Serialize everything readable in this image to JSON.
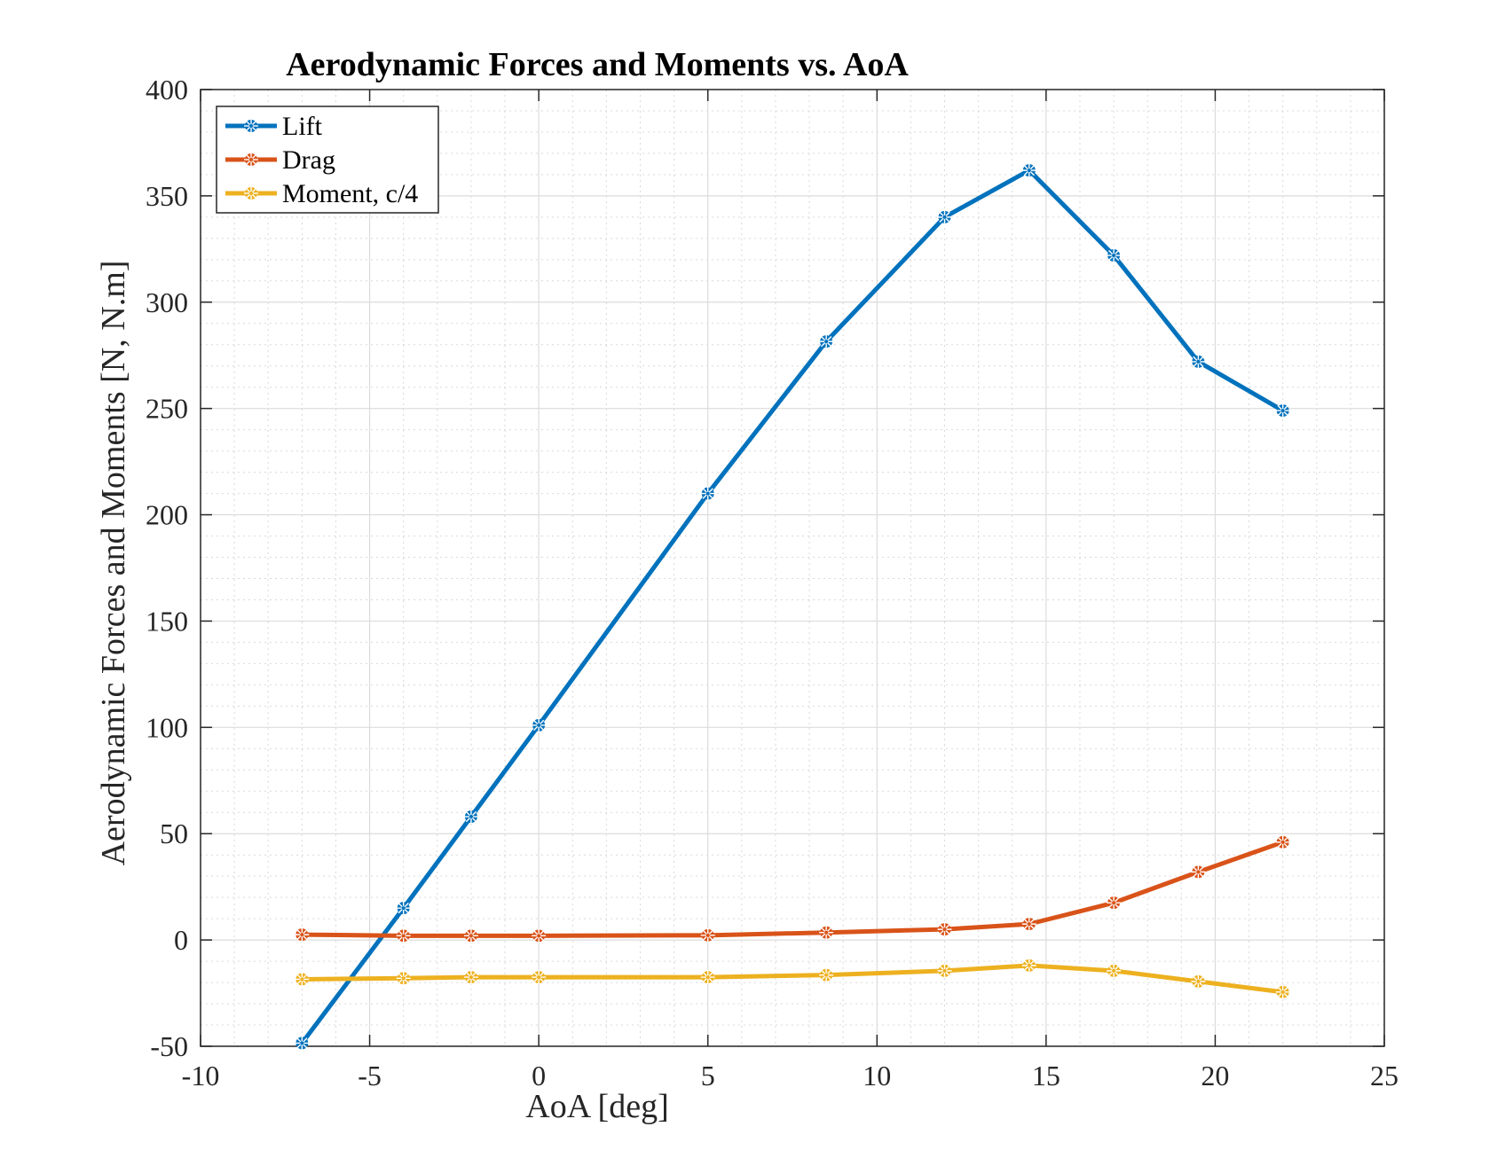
{
  "chart_data": {
    "type": "line",
    "title": "Aerodynamic Forces and Moments vs. AoA",
    "xlabel": "AoA [deg]",
    "ylabel": "Aerodynamic Forces and Moments [N, N.m]",
    "xlim": [
      -10,
      25
    ],
    "ylim": [
      -50,
      400
    ],
    "xticks": [
      -10,
      -5,
      0,
      5,
      10,
      15,
      20,
      25
    ],
    "yticks": [
      -50,
      0,
      50,
      100,
      150,
      200,
      250,
      300,
      350,
      400
    ],
    "grid": true,
    "minor_grid": true,
    "legend_position": "top-left",
    "x": [
      -7,
      -4,
      -2,
      0,
      5,
      8.5,
      12,
      14.5,
      17,
      19.5,
      22
    ],
    "series": [
      {
        "name": "Lift",
        "color": "#0072BD",
        "values": [
          -48.5,
          15,
          58,
          101,
          210,
          281.5,
          340,
          362,
          322,
          272,
          249
        ]
      },
      {
        "name": "Drag",
        "color": "#D95319",
        "values": [
          2.5,
          2,
          2,
          2,
          2.2,
          3.5,
          5,
          7.5,
          17.5,
          32,
          46
        ]
      },
      {
        "name": "Moment, c/4",
        "color": "#EDB120",
        "values": [
          -18.5,
          -18,
          -17.5,
          -17.5,
          -17.5,
          -16.5,
          -14.5,
          -12,
          -14.5,
          -19.5,
          -24.5
        ]
      }
    ]
  }
}
